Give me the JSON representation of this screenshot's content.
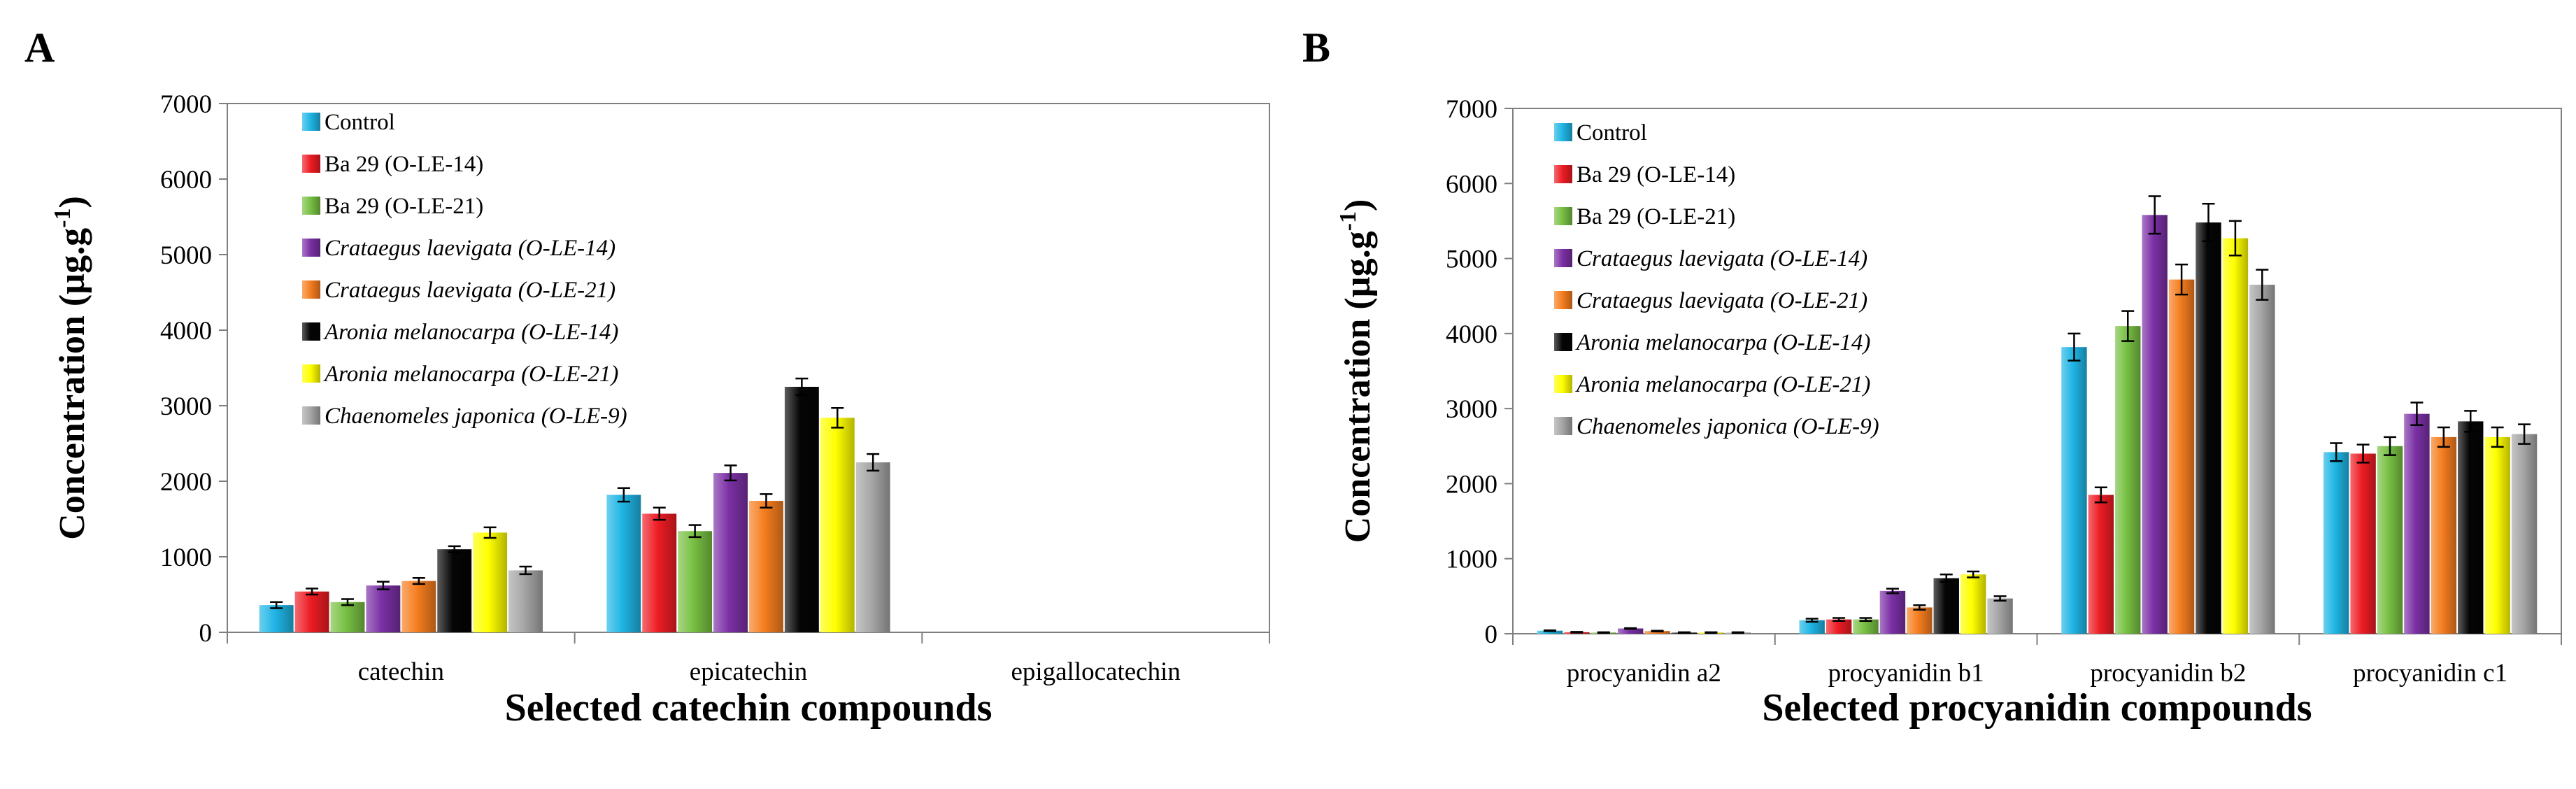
{
  "figure": {
    "ylabel_main": "Concentration (µg.g",
    "ylabel_sup": "-1",
    "ylabel_close": ")"
  },
  "legend": [
    {
      "name": "Control",
      "italic": false,
      "color": "#1fb5e5"
    },
    {
      "name": "Ba 29 (O-LE-14)",
      "italic": false,
      "color": "#ee1c24"
    },
    {
      "name": "Ba 29 (O-LE-21)",
      "italic": false,
      "color": "#78c043"
    },
    {
      "name": "Crataegus laevigata (O-LE-14)",
      "italic": true,
      "color": "#7b30a5"
    },
    {
      "name": "Crataegus laevigata (O-LE-21)",
      "italic": true,
      "color": "#f57d1f"
    },
    {
      "name": "Aronia melanocarpa (O-LE-14)",
      "italic": true,
      "color": "#050505"
    },
    {
      "name": "Aronia melanocarpa (O-LE-21)",
      "italic": true,
      "color": "#ffff00"
    },
    {
      "name": "Chaenomeles japonica (O-LE-9)",
      "italic": true,
      "color": "#a6a6a6"
    }
  ],
  "chart_data": [
    {
      "panel": "A",
      "type": "bar",
      "xlabel": "Selected catechin compounds",
      "ylabel": "Concentration (µg.g-1)",
      "ylim": [
        0,
        7000
      ],
      "yticks": [
        0,
        1000,
        2000,
        3000,
        4000,
        5000,
        6000,
        7000
      ],
      "categories": [
        "catechin",
        "epicatechin",
        "epigallocatechin"
      ],
      "legend_position": "top-left",
      "series": [
        {
          "name": "Control",
          "values": [
            360,
            1820,
            0
          ],
          "errors": [
            40,
            90,
            0
          ]
        },
        {
          "name": "Ba 29 (O-LE-14)",
          "values": [
            540,
            1570,
            0
          ],
          "errors": [
            40,
            80,
            0
          ]
        },
        {
          "name": "Ba 29 (O-LE-21)",
          "values": [
            400,
            1340,
            0
          ],
          "errors": [
            40,
            80,
            0
          ]
        },
        {
          "name": "Crataegus laevigata (O-LE-14)",
          "values": [
            620,
            2110,
            0
          ],
          "errors": [
            50,
            100,
            0
          ]
        },
        {
          "name": "Crataegus laevigata (O-LE-21)",
          "values": [
            680,
            1740,
            0
          ],
          "errors": [
            40,
            90,
            0
          ]
        },
        {
          "name": "Aronia melanocarpa (O-LE-14)",
          "values": [
            1100,
            3250,
            0
          ],
          "errors": [
            40,
            110,
            0
          ]
        },
        {
          "name": "Aronia melanocarpa (O-LE-21)",
          "values": [
            1320,
            2840,
            0
          ],
          "errors": [
            70,
            130,
            0
          ]
        },
        {
          "name": "Chaenomeles japonica (O-LE-9)",
          "values": [
            820,
            2250,
            0
          ],
          "errors": [
            50,
            110,
            0
          ]
        }
      ]
    },
    {
      "panel": "B",
      "type": "bar",
      "xlabel": "Selected procyanidin compounds",
      "ylabel": "Concentration (µg.g-1)",
      "ylim": [
        0,
        7000
      ],
      "yticks": [
        0,
        1000,
        2000,
        3000,
        4000,
        5000,
        6000,
        7000
      ],
      "categories": [
        "procyanidin a2",
        "procyanidin b1",
        "procyanidin b2",
        "procyanidin c1"
      ],
      "legend_position": "top-left",
      "series": [
        {
          "name": "Control",
          "values": [
            40,
            180,
            3820,
            2420
          ],
          "errors": [
            5,
            20,
            180,
            120
          ]
        },
        {
          "name": "Ba 29 (O-LE-14)",
          "values": [
            20,
            190,
            1850,
            2400
          ],
          "errors": [
            5,
            20,
            100,
            120
          ]
        },
        {
          "name": "Ba 29 (O-LE-21)",
          "values": [
            15,
            190,
            4100,
            2500
          ],
          "errors": [
            5,
            20,
            200,
            120
          ]
        },
        {
          "name": "Crataegus laevigata (O-LE-14)",
          "values": [
            70,
            570,
            5580,
            2930
          ],
          "errors": [
            5,
            30,
            250,
            150
          ]
        },
        {
          "name": "Crataegus laevigata (O-LE-21)",
          "values": [
            35,
            350,
            4720,
            2620
          ],
          "errors": [
            5,
            30,
            200,
            130
          ]
        },
        {
          "name": "Aronia melanocarpa (O-LE-14)",
          "values": [
            15,
            740,
            5480,
            2830
          ],
          "errors": [
            5,
            50,
            250,
            140
          ]
        },
        {
          "name": "Aronia melanocarpa (O-LE-21)",
          "values": [
            15,
            790,
            5270,
            2620
          ],
          "errors": [
            5,
            40,
            230,
            130
          ]
        },
        {
          "name": "Chaenomeles japonica (O-LE-9)",
          "values": [
            15,
            470,
            4650,
            2660
          ],
          "errors": [
            5,
            30,
            200,
            130
          ]
        }
      ]
    }
  ]
}
